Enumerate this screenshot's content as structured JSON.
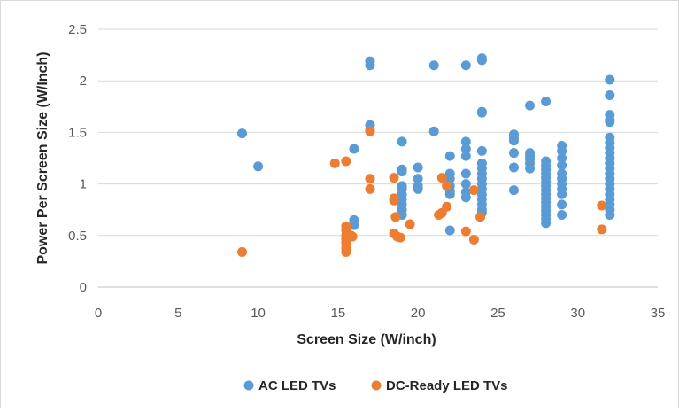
{
  "chart_data": {
    "type": "scatter",
    "xlabel": "Screen Size (W/inch)",
    "ylabel": "Power Per Screen Size (W/Inch)",
    "xlim": [
      0,
      35
    ],
    "ylim": [
      0,
      2.5
    ],
    "x_ticks": [
      0,
      5,
      10,
      15,
      20,
      25,
      30,
      35
    ],
    "y_ticks": [
      0,
      0.5,
      1,
      1.5,
      2,
      2.5
    ],
    "grid": "horizontal",
    "legend_position": "bottom",
    "series": [
      {
        "name": "AC LED TVs",
        "color": "#5b9bd5",
        "points": [
          [
            9,
            1.49
          ],
          [
            10,
            1.17
          ],
          [
            16,
            1.34
          ],
          [
            16,
            0.65
          ],
          [
            16,
            0.6
          ],
          [
            17,
            2.19
          ],
          [
            17,
            2.15
          ],
          [
            17,
            1.57
          ],
          [
            17,
            1.52
          ],
          [
            19,
            1.41
          ],
          [
            19,
            1.14
          ],
          [
            19,
            1.12
          ],
          [
            19,
            0.98
          ],
          [
            19,
            0.95
          ],
          [
            19,
            0.9
          ],
          [
            19,
            0.85
          ],
          [
            19,
            0.8
          ],
          [
            19,
            0.75
          ],
          [
            19,
            0.7
          ],
          [
            20,
            1.16
          ],
          [
            20,
            1.05
          ],
          [
            20,
            0.98
          ],
          [
            20,
            0.95
          ],
          [
            21,
            2.15
          ],
          [
            21,
            1.51
          ],
          [
            22,
            1.27
          ],
          [
            22,
            1.1
          ],
          [
            22,
            1.05
          ],
          [
            22,
            0.98
          ],
          [
            22,
            0.93
          ],
          [
            22,
            0.9
          ],
          [
            22,
            0.55
          ],
          [
            23,
            2.15
          ],
          [
            23,
            1.41
          ],
          [
            23,
            1.34
          ],
          [
            23,
            1.27
          ],
          [
            23,
            1.1
          ],
          [
            23,
            1.0
          ],
          [
            23,
            0.92
          ],
          [
            23,
            0.87
          ],
          [
            24,
            2.22
          ],
          [
            24,
            2.2
          ],
          [
            24,
            1.7
          ],
          [
            24,
            1.69
          ],
          [
            24,
            1.32
          ],
          [
            24,
            1.2
          ],
          [
            24,
            1.15
          ],
          [
            24,
            1.1
          ],
          [
            24,
            1.05
          ],
          [
            24,
            1.0
          ],
          [
            24,
            0.95
          ],
          [
            24,
            0.9
          ],
          [
            24,
            0.85
          ],
          [
            24,
            0.8
          ],
          [
            24,
            0.75
          ],
          [
            24,
            0.72
          ],
          [
            26,
            1.48
          ],
          [
            26,
            1.45
          ],
          [
            26,
            1.42
          ],
          [
            26,
            1.3
          ],
          [
            26,
            1.16
          ],
          [
            26,
            0.94
          ],
          [
            27,
            1.76
          ],
          [
            27,
            1.3
          ],
          [
            27,
            1.27
          ],
          [
            27,
            1.24
          ],
          [
            27,
            1.2
          ],
          [
            27,
            1.15
          ],
          [
            28,
            1.8
          ],
          [
            28,
            1.22
          ],
          [
            28,
            1.18
          ],
          [
            28,
            1.14
          ],
          [
            28,
            1.1
          ],
          [
            28,
            1.06
          ],
          [
            28,
            1.02
          ],
          [
            28,
            0.98
          ],
          [
            28,
            0.94
          ],
          [
            28,
            0.9
          ],
          [
            28,
            0.86
          ],
          [
            28,
            0.82
          ],
          [
            28,
            0.78
          ],
          [
            28,
            0.74
          ],
          [
            28,
            0.7
          ],
          [
            28,
            0.66
          ],
          [
            28,
            0.62
          ],
          [
            29,
            1.37
          ],
          [
            29,
            1.32
          ],
          [
            29,
            1.25
          ],
          [
            29,
            1.18
          ],
          [
            29,
            1.1
          ],
          [
            29,
            1.05
          ],
          [
            29,
            1.0
          ],
          [
            29,
            0.95
          ],
          [
            29,
            0.9
          ],
          [
            29,
            0.8
          ],
          [
            29,
            0.7
          ],
          [
            32,
            2.01
          ],
          [
            32,
            1.86
          ],
          [
            32,
            1.67
          ],
          [
            32,
            1.62
          ],
          [
            32,
            1.6
          ],
          [
            32,
            1.45
          ],
          [
            32,
            1.4
          ],
          [
            32,
            1.35
          ],
          [
            32,
            1.3
          ],
          [
            32,
            1.25
          ],
          [
            32,
            1.2
          ],
          [
            32,
            1.15
          ],
          [
            32,
            1.1
          ],
          [
            32,
            1.05
          ],
          [
            32,
            1.0
          ],
          [
            32,
            0.95
          ],
          [
            32,
            0.9
          ],
          [
            32,
            0.85
          ],
          [
            32,
            0.8
          ],
          [
            32,
            0.75
          ],
          [
            32,
            0.7
          ]
        ]
      },
      {
        "name": "DC-Ready LED TVs",
        "color": "#ed7d31",
        "points": [
          [
            9,
            0.34
          ],
          [
            14.8,
            1.2
          ],
          [
            15.5,
            1.22
          ],
          [
            15.5,
            0.59
          ],
          [
            15.5,
            0.55
          ],
          [
            15.5,
            0.5
          ],
          [
            15.5,
            0.46
          ],
          [
            15.5,
            0.43
          ],
          [
            15.5,
            0.38
          ],
          [
            15.5,
            0.34
          ],
          [
            15.8,
            0.5
          ],
          [
            15.9,
            0.49
          ],
          [
            17,
            1.51
          ],
          [
            17,
            1.05
          ],
          [
            17,
            0.95
          ],
          [
            18.5,
            1.06
          ],
          [
            18.5,
            0.86
          ],
          [
            18.5,
            0.84
          ],
          [
            18.6,
            0.68
          ],
          [
            18.5,
            0.52
          ],
          [
            18.7,
            0.49
          ],
          [
            18.9,
            0.48
          ],
          [
            19.5,
            0.61
          ],
          [
            21.5,
            1.06
          ],
          [
            21.8,
            0.98
          ],
          [
            21.8,
            0.78
          ],
          [
            21.5,
            0.72
          ],
          [
            21.3,
            0.7
          ],
          [
            23,
            0.54
          ],
          [
            23.5,
            0.46
          ],
          [
            23.5,
            0.94
          ],
          [
            23.9,
            0.68
          ],
          [
            31.5,
            0.79
          ],
          [
            31.5,
            0.56
          ]
        ]
      }
    ]
  }
}
